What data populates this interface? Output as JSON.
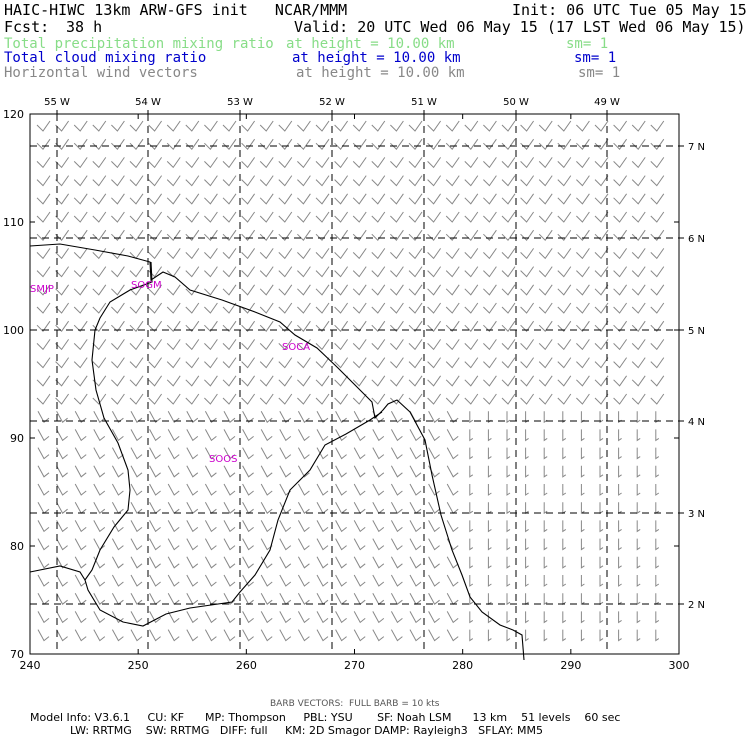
{
  "header": {
    "model_title": "HAIC-HIWC 13km ARW-GFS init   NCAR/MMM",
    "init": "Init: 06 UTC Tue 05 May 15",
    "fcst_label": "Fcst:",
    "fcst_value": "38 h",
    "valid": "Valid: 20 UTC Wed 06 May 15 (17 LST Wed 06 May 15)",
    "fields": [
      {
        "name": "Total precipitation mixing ratio",
        "level": "at height = 10.00 km",
        "smooth": "sm= 1",
        "color": "#88dd88"
      },
      {
        "name": "Total cloud mixing ratio",
        "level": "at height = 10.00 km",
        "smooth": "sm= 1",
        "color": "#0000cc"
      },
      {
        "name": "Horizontal wind vectors",
        "level": "at height = 10.00 km",
        "smooth": "sm= 1",
        "color": "#888888"
      }
    ]
  },
  "axes": {
    "x_ticks": [
      "240",
      "250",
      "260",
      "270",
      "280",
      "290",
      "300"
    ],
    "y_ticks": [
      "70",
      "80",
      "90",
      "100",
      "110",
      "120"
    ],
    "lon_labels": [
      "55 W",
      "54 W",
      "53 W",
      "52 W",
      "51 W",
      "50 W",
      "49 W"
    ],
    "lat_labels": [
      "7 N",
      "6 N",
      "5 N",
      "4 N",
      "3 N",
      "2 N"
    ],
    "x_range": [
      240,
      300
    ],
    "y_range": [
      70,
      120
    ]
  },
  "stations": [
    "SMJP",
    "SOGM",
    "SOCA",
    "SOOS"
  ],
  "colors": {
    "coastline": "#000000",
    "gridlines": "#000000",
    "barbs": "#888888",
    "stations": "#cc00cc"
  },
  "footer": {
    "barb_note": "BARB VECTORS:  FULL BARB = 10 kts",
    "model_info_1": "Model Info: V3.6.1     CU: KF      MP: Thompson     PBL: YSU       SF: Noah LSM      13 km    51 levels    60 sec",
    "model_info_2": "LW: RRTMG    SW: RRTMG   DIFF: full     KM: 2D Smagor DAMP: Rayleigh3   SFLAY: MM5"
  }
}
